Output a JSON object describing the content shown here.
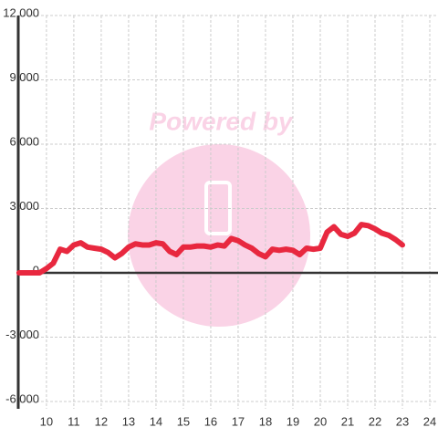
{
  "chart_data": {
    "type": "line",
    "watermark": "Powered by",
    "color": "#e8283f",
    "x": [
      9.0,
      9.25,
      9.5,
      9.75,
      10.0,
      10.25,
      10.5,
      10.75,
      11.0,
      11.25,
      11.5,
      11.75,
      12.0,
      12.25,
      12.5,
      12.75,
      13.0,
      13.25,
      13.5,
      13.75,
      14.0,
      14.25,
      14.5,
      14.75,
      15.0,
      15.25,
      15.5,
      15.75,
      16.0,
      16.25,
      16.5,
      16.75,
      17.0,
      17.25,
      17.5,
      17.75,
      18.0,
      18.25,
      18.5,
      18.75,
      19.0,
      19.25,
      19.5,
      19.75,
      20.0,
      20.25,
      20.5,
      20.75,
      21.0,
      21.25,
      21.5,
      21.75,
      22.0,
      22.25,
      22.5,
      22.75,
      23.0
    ],
    "values": [
      0,
      0,
      0,
      0,
      200,
      450,
      1100,
      1000,
      1300,
      1400,
      1200,
      1150,
      1100,
      950,
      700,
      900,
      1200,
      1350,
      1300,
      1300,
      1400,
      1350,
      1000,
      850,
      1200,
      1200,
      1250,
      1250,
      1200,
      1300,
      1250,
      1600,
      1500,
      1300,
      1150,
      900,
      750,
      1100,
      1050,
      1100,
      1050,
      850,
      1150,
      1100,
      1150,
      1900,
      2150,
      1800,
      1700,
      1850,
      2250,
      2200,
      2050,
      1850,
      1750,
      1550,
      1300
    ],
    "xlim": [
      8.97,
      24.3
    ],
    "xticks": [
      10,
      11,
      12,
      13,
      14,
      15,
      16,
      17,
      18,
      19,
      20,
      21,
      22,
      23,
      24
    ],
    "ylim": [
      -6000,
      12000
    ],
    "yticks": [
      {
        "value": -6000,
        "label": "-6,000"
      },
      {
        "value": -3000,
        "label": "-3,000"
      },
      0,
      {
        "value": 3000,
        "label": "3,000"
      },
      {
        "value": 6000,
        "label": "6,000"
      },
      {
        "value": 9000,
        "label": "9,000"
      },
      {
        "value": 12000,
        "label": "12,000"
      }
    ],
    "grid": true
  }
}
